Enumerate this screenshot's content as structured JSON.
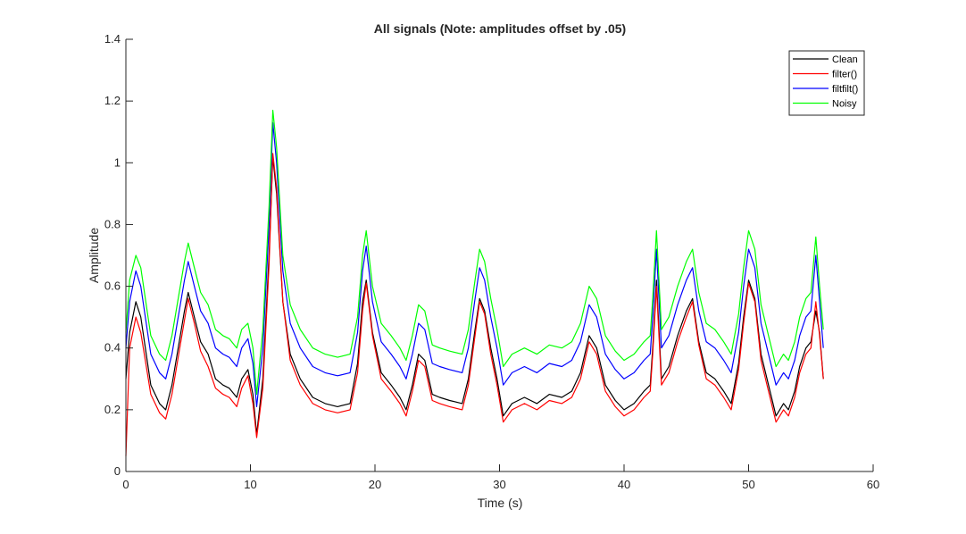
{
  "chart_data": {
    "type": "line",
    "title": "All signals (Note: amplitudes offset by .05)",
    "xlabel": "Time (s)",
    "ylabel": "Amplitude",
    "xlim": [
      0,
      60
    ],
    "ylim": [
      0,
      1.4
    ],
    "xticks": [
      0,
      10,
      20,
      30,
      40,
      50,
      60
    ],
    "xtick_labels": [
      "0",
      "10",
      "20",
      "30",
      "40",
      "50",
      "60"
    ],
    "yticks": [
      0,
      0.2,
      0.4,
      0.6,
      0.8,
      1.0,
      1.2,
      1.4
    ],
    "ytick_labels": [
      "0",
      "0.2",
      "0.4",
      "0.6",
      "0.8",
      "1",
      "1.2",
      "1.4"
    ],
    "grid": false,
    "legend_position": "top-right",
    "series": [
      {
        "name": "Clean",
        "color": "#000000",
        "offset": 0,
        "x": [
          0,
          0.3,
          0.8,
          1.2,
          2.0,
          2.7,
          3.2,
          3.7,
          4.2,
          4.7,
          5.0,
          5.5,
          6.0,
          6.6,
          7.2,
          7.8,
          8.3,
          8.9,
          9.3,
          9.8,
          10.2,
          10.5,
          11.0,
          11.5,
          11.8,
          12.1,
          12.6,
          13.2,
          14.0,
          15.0,
          16.0,
          17.0,
          18.0,
          18.6,
          19.0,
          19.3,
          19.8,
          20.5,
          21.3,
          22.0,
          22.5,
          23.0,
          23.5,
          24.0,
          24.6,
          25.2,
          26.0,
          27.0,
          27.5,
          28.0,
          28.4,
          28.8,
          29.3,
          29.8,
          30.3,
          31.0,
          32.0,
          33.0,
          34.0,
          35.0,
          35.8,
          36.5,
          37.2,
          37.8,
          38.5,
          39.3,
          40.0,
          40.8,
          41.6,
          42.1,
          42.3,
          42.6,
          43.0,
          43.6,
          44.3,
          45.0,
          45.5,
          46.0,
          46.6,
          47.3,
          48.0,
          48.6,
          49.2,
          49.6,
          50.0,
          50.5,
          51.0,
          51.6,
          52.2,
          52.8,
          53.2,
          53.7,
          54.1,
          54.6,
          55.0,
          55.4,
          55.7,
          56.0
        ],
        "y": [
          0.3,
          0.45,
          0.55,
          0.5,
          0.28,
          0.22,
          0.2,
          0.28,
          0.4,
          0.52,
          0.58,
          0.5,
          0.42,
          0.38,
          0.3,
          0.28,
          0.27,
          0.24,
          0.3,
          0.33,
          0.25,
          0.12,
          0.3,
          0.7,
          1.02,
          0.9,
          0.55,
          0.38,
          0.3,
          0.24,
          0.22,
          0.21,
          0.22,
          0.35,
          0.55,
          0.62,
          0.45,
          0.32,
          0.28,
          0.24,
          0.2,
          0.28,
          0.38,
          0.36,
          0.25,
          0.24,
          0.23,
          0.22,
          0.3,
          0.45,
          0.56,
          0.52,
          0.4,
          0.3,
          0.18,
          0.22,
          0.24,
          0.22,
          0.25,
          0.24,
          0.26,
          0.32,
          0.44,
          0.4,
          0.28,
          0.23,
          0.2,
          0.22,
          0.26,
          0.28,
          0.4,
          0.62,
          0.3,
          0.34,
          0.44,
          0.52,
          0.56,
          0.42,
          0.32,
          0.3,
          0.26,
          0.22,
          0.35,
          0.5,
          0.62,
          0.56,
          0.38,
          0.28,
          0.18,
          0.22,
          0.2,
          0.26,
          0.34,
          0.4,
          0.42,
          0.52,
          0.45,
          0.3
        ]
      },
      {
        "name": "filter()",
        "color": "#ff0000",
        "offset": 0.05,
        "x": [
          0,
          0.3,
          0.8,
          1.2,
          2.0,
          2.7,
          3.2,
          3.7,
          4.2,
          4.7,
          5.0,
          5.5,
          6.0,
          6.6,
          7.2,
          7.8,
          8.3,
          8.9,
          9.3,
          9.8,
          10.2,
          10.5,
          11.0,
          11.5,
          11.8,
          12.1,
          12.6,
          13.2,
          14.0,
          15.0,
          16.0,
          17.0,
          18.0,
          18.6,
          19.0,
          19.3,
          19.8,
          20.5,
          21.3,
          22.0,
          22.5,
          23.0,
          23.5,
          24.0,
          24.6,
          25.2,
          26.0,
          27.0,
          27.5,
          28.0,
          28.4,
          28.8,
          29.3,
          29.8,
          30.3,
          31.0,
          32.0,
          33.0,
          34.0,
          35.0,
          35.8,
          36.5,
          37.2,
          37.8,
          38.5,
          39.3,
          40.0,
          40.8,
          41.6,
          42.1,
          42.3,
          42.6,
          43.0,
          43.6,
          44.3,
          45.0,
          45.5,
          46.0,
          46.6,
          47.3,
          48.0,
          48.6,
          49.2,
          49.6,
          50.0,
          50.5,
          51.0,
          51.6,
          52.2,
          52.8,
          53.2,
          53.7,
          54.1,
          54.6,
          55.0,
          55.4,
          55.7,
          56.0
        ],
        "y": [
          0.05,
          0.4,
          0.5,
          0.45,
          0.25,
          0.19,
          0.17,
          0.25,
          0.37,
          0.49,
          0.56,
          0.48,
          0.39,
          0.34,
          0.27,
          0.25,
          0.24,
          0.21,
          0.27,
          0.31,
          0.22,
          0.11,
          0.27,
          0.67,
          1.03,
          0.92,
          0.55,
          0.36,
          0.28,
          0.22,
          0.2,
          0.19,
          0.2,
          0.32,
          0.52,
          0.61,
          0.44,
          0.3,
          0.26,
          0.22,
          0.18,
          0.26,
          0.36,
          0.34,
          0.23,
          0.22,
          0.21,
          0.2,
          0.28,
          0.43,
          0.55,
          0.51,
          0.38,
          0.28,
          0.16,
          0.2,
          0.22,
          0.2,
          0.23,
          0.22,
          0.24,
          0.3,
          0.42,
          0.38,
          0.26,
          0.21,
          0.18,
          0.2,
          0.24,
          0.26,
          0.38,
          0.6,
          0.28,
          0.32,
          0.42,
          0.5,
          0.55,
          0.41,
          0.3,
          0.28,
          0.24,
          0.2,
          0.33,
          0.48,
          0.61,
          0.55,
          0.36,
          0.26,
          0.16,
          0.2,
          0.18,
          0.24,
          0.32,
          0.38,
          0.4,
          0.55,
          0.44,
          0.3
        ]
      },
      {
        "name": "filtfilt()",
        "color": "#0000ff",
        "offset": 0.1,
        "x": [
          0,
          0.3,
          0.8,
          1.2,
          2.0,
          2.7,
          3.2,
          3.7,
          4.2,
          4.7,
          5.0,
          5.5,
          6.0,
          6.6,
          7.2,
          7.8,
          8.3,
          8.9,
          9.3,
          9.8,
          10.2,
          10.5,
          11.0,
          11.5,
          11.8,
          12.1,
          12.6,
          13.2,
          14.0,
          15.0,
          16.0,
          17.0,
          18.0,
          18.6,
          19.0,
          19.3,
          19.8,
          20.5,
          21.3,
          22.0,
          22.5,
          23.0,
          23.5,
          24.0,
          24.6,
          25.2,
          26.0,
          27.0,
          27.5,
          28.0,
          28.4,
          28.8,
          29.3,
          29.8,
          30.3,
          31.0,
          32.0,
          33.0,
          34.0,
          35.0,
          35.8,
          36.5,
          37.2,
          37.8,
          38.5,
          39.3,
          40.0,
          40.8,
          41.6,
          42.1,
          42.3,
          42.6,
          43.0,
          43.6,
          44.3,
          45.0,
          45.5,
          46.0,
          46.6,
          47.3,
          48.0,
          48.6,
          49.2,
          49.6,
          50.0,
          50.5,
          51.0,
          51.6,
          52.2,
          52.8,
          53.2,
          53.7,
          54.1,
          54.6,
          55.0,
          55.4,
          55.7,
          56.0
        ],
        "y": [
          0.4,
          0.55,
          0.65,
          0.6,
          0.38,
          0.32,
          0.3,
          0.38,
          0.5,
          0.62,
          0.68,
          0.6,
          0.52,
          0.48,
          0.4,
          0.38,
          0.37,
          0.34,
          0.4,
          0.43,
          0.35,
          0.21,
          0.4,
          0.8,
          1.13,
          1.0,
          0.65,
          0.48,
          0.4,
          0.34,
          0.32,
          0.31,
          0.32,
          0.45,
          0.65,
          0.73,
          0.55,
          0.42,
          0.38,
          0.34,
          0.3,
          0.38,
          0.48,
          0.46,
          0.35,
          0.34,
          0.33,
          0.32,
          0.4,
          0.55,
          0.66,
          0.62,
          0.5,
          0.4,
          0.28,
          0.32,
          0.34,
          0.32,
          0.35,
          0.34,
          0.36,
          0.42,
          0.54,
          0.5,
          0.38,
          0.33,
          0.3,
          0.32,
          0.36,
          0.38,
          0.5,
          0.72,
          0.4,
          0.44,
          0.54,
          0.62,
          0.66,
          0.52,
          0.42,
          0.4,
          0.36,
          0.32,
          0.45,
          0.6,
          0.72,
          0.66,
          0.48,
          0.38,
          0.28,
          0.32,
          0.3,
          0.36,
          0.44,
          0.5,
          0.52,
          0.7,
          0.55,
          0.4
        ]
      },
      {
        "name": "Noisy",
        "color": "#00ff00",
        "offset": 0.15,
        "x": [
          0,
          0.3,
          0.8,
          1.2,
          2.0,
          2.7,
          3.2,
          3.7,
          4.2,
          4.7,
          5.0,
          5.5,
          6.0,
          6.6,
          7.2,
          7.8,
          8.3,
          8.9,
          9.3,
          9.8,
          10.2,
          10.5,
          11.0,
          11.5,
          11.8,
          12.1,
          12.6,
          13.2,
          14.0,
          15.0,
          16.0,
          17.0,
          18.0,
          18.6,
          19.0,
          19.3,
          19.8,
          20.5,
          21.3,
          22.0,
          22.5,
          23.0,
          23.5,
          24.0,
          24.6,
          25.2,
          26.0,
          27.0,
          27.5,
          28.0,
          28.4,
          28.8,
          29.3,
          29.8,
          30.3,
          31.0,
          32.0,
          33.0,
          34.0,
          35.0,
          35.8,
          36.5,
          37.2,
          37.8,
          38.5,
          39.3,
          40.0,
          40.8,
          41.6,
          42.1,
          42.3,
          42.6,
          43.0,
          43.6,
          44.3,
          45.0,
          45.5,
          46.0,
          46.6,
          47.3,
          48.0,
          48.6,
          49.2,
          49.6,
          50.0,
          50.5,
          51.0,
          51.6,
          52.2,
          52.8,
          53.2,
          53.7,
          54.1,
          54.6,
          55.0,
          55.4,
          55.7,
          56.0
        ],
        "y": [
          0.45,
          0.62,
          0.7,
          0.66,
          0.44,
          0.38,
          0.36,
          0.44,
          0.56,
          0.68,
          0.74,
          0.66,
          0.58,
          0.54,
          0.46,
          0.44,
          0.43,
          0.4,
          0.46,
          0.48,
          0.4,
          0.25,
          0.46,
          0.86,
          1.17,
          1.05,
          0.7,
          0.54,
          0.46,
          0.4,
          0.38,
          0.37,
          0.38,
          0.5,
          0.7,
          0.78,
          0.6,
          0.48,
          0.44,
          0.4,
          0.36,
          0.44,
          0.54,
          0.52,
          0.41,
          0.4,
          0.39,
          0.38,
          0.46,
          0.61,
          0.72,
          0.68,
          0.56,
          0.46,
          0.34,
          0.38,
          0.4,
          0.38,
          0.41,
          0.4,
          0.42,
          0.48,
          0.6,
          0.56,
          0.44,
          0.39,
          0.36,
          0.38,
          0.42,
          0.44,
          0.56,
          0.78,
          0.46,
          0.5,
          0.6,
          0.68,
          0.72,
          0.58,
          0.48,
          0.46,
          0.42,
          0.38,
          0.51,
          0.66,
          0.78,
          0.72,
          0.54,
          0.44,
          0.34,
          0.38,
          0.36,
          0.42,
          0.5,
          0.56,
          0.58,
          0.76,
          0.6,
          0.46
        ]
      }
    ]
  }
}
